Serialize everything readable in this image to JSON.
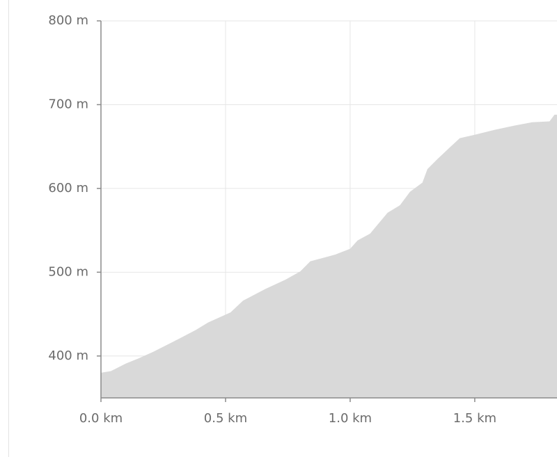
{
  "chart_data": {
    "type": "area",
    "x": [
      0,
      0.04,
      0.1,
      0.15,
      0.21,
      0.29,
      0.38,
      0.43,
      0.52,
      0.57,
      0.66,
      0.74,
      0.8,
      0.84,
      0.89,
      0.94,
      1.0,
      1.03,
      1.08,
      1.15,
      1.2,
      1.24,
      1.29,
      1.31,
      1.35,
      1.4,
      1.44,
      1.5,
      1.58,
      1.66,
      1.73,
      1.8,
      1.82,
      1.83
    ],
    "values": [
      380,
      382,
      391,
      397,
      405,
      417,
      431,
      440,
      452,
      466,
      480,
      491,
      501,
      513,
      517,
      521,
      528,
      538,
      546,
      571,
      580,
      596,
      607,
      623,
      635,
      649,
      660,
      664,
      670,
      675,
      679,
      680,
      688,
      688
    ],
    "color": "#d9d9d9",
    "xlim": [
      0,
      1.83
    ],
    "ylim": [
      350,
      800
    ],
    "xticks": [
      {
        "value": 0,
        "label": "0.0 km"
      },
      {
        "value": 0.5,
        "label": "0.5 km"
      },
      {
        "value": 1.0,
        "label": "1.0 km"
      },
      {
        "value": 1.5,
        "label": "1.5 km"
      }
    ],
    "yticks": [
      {
        "value": 400,
        "label": "400 m"
      },
      {
        "value": 500,
        "label": "500 m"
      },
      {
        "value": 600,
        "label": "600 m"
      },
      {
        "value": 700,
        "label": "700 m"
      },
      {
        "value": 800,
        "label": "800 m"
      }
    ],
    "grid": true
  }
}
